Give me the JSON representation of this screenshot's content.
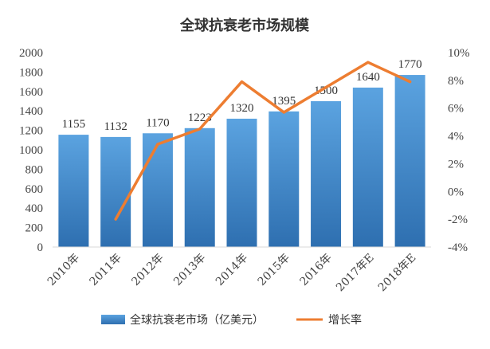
{
  "chart_data": {
    "type": "bar",
    "title": "全球抗衰老市场规模",
    "categories": [
      "2010年",
      "2011年",
      "2012年",
      "2013年",
      "2014年",
      "2015年",
      "2016年",
      "2017年E",
      "2018年E"
    ],
    "series": [
      {
        "name": "全球抗衰老市场（亿美元）",
        "type": "bar",
        "axis": "left",
        "values": [
          1155,
          1132,
          1170,
          1223,
          1320,
          1395,
          1500,
          1640,
          1770
        ],
        "color": "#3f86c8"
      },
      {
        "name": "增长率",
        "type": "line",
        "axis": "right",
        "values": [
          null,
          -2.0,
          3.4,
          4.5,
          7.9,
          5.7,
          7.5,
          9.3,
          7.9
        ],
        "color": "#ed7d31"
      }
    ],
    "y_left": {
      "min": 0,
      "max": 2000,
      "step": 200,
      "ticks": [
        "0",
        "200",
        "400",
        "600",
        "800",
        "1000",
        "1200",
        "1400",
        "1600",
        "1800",
        "2000"
      ]
    },
    "y_right": {
      "min": -4,
      "max": 10,
      "step": 2,
      "ticks": [
        "-4%",
        "-2%",
        "0%",
        "2%",
        "4%",
        "6%",
        "8%",
        "10%"
      ]
    },
    "data_labels": [
      "1155",
      "1132",
      "1170",
      "1223",
      "1320",
      "1395",
      "1500",
      "1640",
      "1770"
    ],
    "grid": false,
    "legend_position": "bottom"
  }
}
